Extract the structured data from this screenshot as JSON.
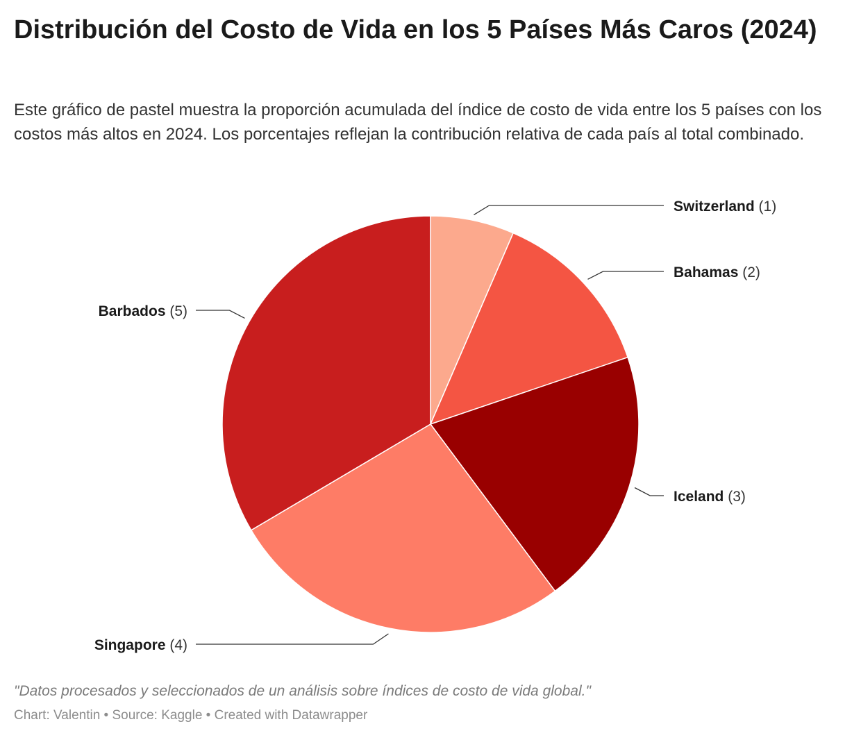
{
  "header": {
    "title": "Distribución del Costo de Vida en los 5 Países Más Caros (2024)",
    "subtitle": "Este gráfico de pastel muestra la proporción acumulada del índice de costo de vida entre los 5 países con los costos más altos en 2024. Los porcentajes reflejan la contribución relativa de cada país al total combinado."
  },
  "chart_data": {
    "type": "pie",
    "title": "Distribución del Costo de Vida en los 5 Países Más Caros (2024)",
    "slices": [
      {
        "label": "Switzerland",
        "rank": "(1)",
        "value": 6.5,
        "color": "#fca98d"
      },
      {
        "label": "Bahamas",
        "rank": "(2)",
        "value": 13.3,
        "color": "#f45543"
      },
      {
        "label": "Iceland",
        "rank": "(3)",
        "value": 20.0,
        "color": "#990000"
      },
      {
        "label": "Singapore",
        "rank": "(4)",
        "value": 26.7,
        "color": "#fe7c66"
      },
      {
        "label": "Barbados",
        "rank": "(5)",
        "value": 33.5,
        "color": "#c81e1e"
      }
    ],
    "start": "12 o'clock, clockwise",
    "legend": "none (direct labels)"
  },
  "footer": {
    "notes": "\"Datos procesados y seleccionados de un análisis sobre índices de costo de vida global.\"",
    "credits": "Chart: Valentin • Source: Kaggle • Created with Datawrapper"
  }
}
